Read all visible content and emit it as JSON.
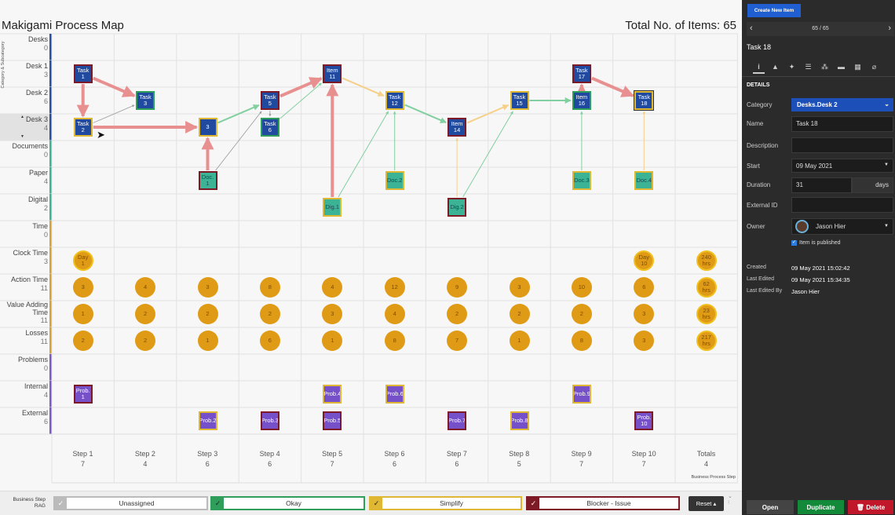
{
  "header": {
    "title": "Makigami Process Map",
    "total": "Total No. of Items: 65",
    "axis_caption": "Category & Subcategory"
  },
  "colors": {
    "desks": "#2b4fa0",
    "documents": "#3bb394",
    "time": "#d4a23a",
    "problems": "#7c5ac6",
    "node_task": "#1f4aa0",
    "node_doc": "#3bb394",
    "node_prob": "#7650c8",
    "okay": "#2e9e5a",
    "simplify": "#e0b732",
    "blocker": "#7d1a26",
    "unassigned": "#bbbbbb"
  },
  "rows": [
    {
      "label": "Desks",
      "count": "0",
      "group": "desks"
    },
    {
      "label": "Desk 1",
      "count": "3",
      "group": "desks"
    },
    {
      "label": "Desk 2",
      "count": "6",
      "group": "desks"
    },
    {
      "label": "Desk 3",
      "count": "4",
      "group": "desks",
      "selected": true
    },
    {
      "label": "Documents",
      "count": "0",
      "group": "documents"
    },
    {
      "label": "Paper",
      "count": "4",
      "group": "documents"
    },
    {
      "label": "Digital",
      "count": "2",
      "group": "documents"
    },
    {
      "label": "Time",
      "count": "0",
      "group": "time"
    },
    {
      "label": "Clock Time",
      "count": "3",
      "group": "time"
    },
    {
      "label": "Action Time",
      "count": "11",
      "group": "time"
    },
    {
      "label": "Value Adding Time",
      "count": "11",
      "group": "time"
    },
    {
      "label": "Losses",
      "count": "11",
      "group": "time"
    },
    {
      "label": "Problems",
      "count": "0",
      "group": "problems"
    },
    {
      "label": "Internal",
      "count": "4",
      "group": "problems"
    },
    {
      "label": "External",
      "count": "6",
      "group": "problems"
    }
  ],
  "steps": [
    {
      "label": "Step 1",
      "count": "7"
    },
    {
      "label": "Step 2",
      "count": "4"
    },
    {
      "label": "Step 3",
      "count": "6"
    },
    {
      "label": "Step 4",
      "count": "6"
    },
    {
      "label": "Step 5",
      "count": "7"
    },
    {
      "label": "Step 6",
      "count": "6"
    },
    {
      "label": "Step 7",
      "count": "6"
    },
    {
      "label": "Step 8",
      "count": "5"
    },
    {
      "label": "Step 9",
      "count": "7"
    },
    {
      "label": "Step 10",
      "count": "7"
    },
    {
      "label": "Totals",
      "count": "4"
    }
  ],
  "footer_caption": "Business Process Step",
  "nodes": [
    {
      "id": "t1",
      "label": "Task 1",
      "step": 1,
      "row": "Desk 1",
      "kind": "task",
      "status": "blocker"
    },
    {
      "id": "t3",
      "label": "Task 3",
      "step": 2,
      "row": "Desk 2",
      "kind": "task",
      "status": "okay"
    },
    {
      "id": "t2",
      "label": "Task 2",
      "step": 1,
      "row": "Desk 3",
      "kind": "task",
      "status": "simplify"
    },
    {
      "id": "n3",
      "label": "3",
      "step": 3,
      "row": "Desk 3",
      "kind": "task",
      "status": "simplify"
    },
    {
      "id": "d1",
      "label": "Doc. 1",
      "step": 3,
      "row": "Paper",
      "kind": "doc",
      "status": "blocker"
    },
    {
      "id": "t5",
      "label": "Task 5",
      "step": 4,
      "row": "Desk 2",
      "kind": "task",
      "status": "blocker"
    },
    {
      "id": "t6",
      "label": "Task 6",
      "step": 4,
      "row": "Desk 3",
      "kind": "task",
      "status": "okay"
    },
    {
      "id": "i11",
      "label": "Item 11",
      "step": 5,
      "row": "Desk 1",
      "kind": "task",
      "status": "blocker"
    },
    {
      "id": "g1",
      "label": "Dig.1",
      "step": 5,
      "row": "Digital",
      "kind": "doc",
      "status": "simplify"
    },
    {
      "id": "t12",
      "label": "Task 12",
      "step": 6,
      "row": "Desk 2",
      "kind": "task",
      "status": "simplify"
    },
    {
      "id": "d2",
      "label": "Doc.2",
      "step": 6,
      "row": "Paper",
      "kind": "doc",
      "status": "simplify"
    },
    {
      "id": "i14",
      "label": "Item 14",
      "step": 7,
      "row": "Desk 3",
      "kind": "task",
      "status": "blocker"
    },
    {
      "id": "g2",
      "label": "Dig.2",
      "step": 7,
      "row": "Digital",
      "kind": "doc",
      "status": "blocker"
    },
    {
      "id": "t15",
      "label": "Task 15",
      "step": 8,
      "row": "Desk 2",
      "kind": "task",
      "status": "simplify"
    },
    {
      "id": "i16",
      "label": "Item 16",
      "step": 9,
      "row": "Desk 2",
      "kind": "task",
      "status": "okay"
    },
    {
      "id": "t17",
      "label": "Task 17",
      "step": 9,
      "row": "Desk 1",
      "kind": "task",
      "status": "blocker"
    },
    {
      "id": "d3",
      "label": "Doc.3",
      "step": 9,
      "row": "Paper",
      "kind": "doc",
      "status": "simplify"
    },
    {
      "id": "t18",
      "label": "Task 18",
      "step": 10,
      "row": "Desk 2",
      "kind": "task",
      "status": "simplify",
      "selected": true
    },
    {
      "id": "d4",
      "label": "Doc.4",
      "step": 10,
      "row": "Paper",
      "kind": "doc",
      "status": "simplify"
    },
    {
      "id": "p1",
      "label": "Prob. 1",
      "step": 1,
      "row": "Internal",
      "kind": "prob",
      "status": "blocker"
    },
    {
      "id": "p4",
      "label": "Prob.4",
      "step": 5,
      "row": "Internal",
      "kind": "prob",
      "status": "simplify"
    },
    {
      "id": "p6",
      "label": "Prob.6",
      "step": 6,
      "row": "Internal",
      "kind": "prob",
      "status": "simplify"
    },
    {
      "id": "p9",
      "label": "Prob.9",
      "step": 9,
      "row": "Internal",
      "kind": "prob",
      "status": "simplify"
    },
    {
      "id": "p2",
      "label": "Prob.2",
      "step": 3,
      "row": "External",
      "kind": "prob",
      "status": "simplify"
    },
    {
      "id": "p3",
      "label": "Prob.3",
      "step": 4,
      "row": "External",
      "kind": "prob",
      "status": "blocker"
    },
    {
      "id": "p5",
      "label": "Prob.5",
      "step": 5,
      "row": "External",
      "kind": "prob",
      "status": "blocker"
    },
    {
      "id": "p7",
      "label": "Prob.7",
      "step": 7,
      "row": "External",
      "kind": "prob",
      "status": "blocker"
    },
    {
      "id": "p8",
      "label": "Prob.8",
      "step": 8,
      "row": "External",
      "kind": "prob",
      "status": "simplify"
    },
    {
      "id": "p10",
      "label": "Prob. 10",
      "step": 10,
      "row": "External",
      "kind": "prob",
      "status": "blocker"
    }
  ],
  "links": [
    {
      "from": "t1",
      "to": "t3",
      "status": "blocker"
    },
    {
      "from": "t1",
      "to": "t2",
      "status": "blocker"
    },
    {
      "from": "t2",
      "to": "t3",
      "status": "unassigned"
    },
    {
      "from": "t2",
      "to": "n3",
      "status": "blocker"
    },
    {
      "from": "d1",
      "to": "n3",
      "status": "blocker"
    },
    {
      "from": "d1",
      "to": "t5",
      "status": "unassigned"
    },
    {
      "from": "n3",
      "to": "t5",
      "status": "okay"
    },
    {
      "from": "t5",
      "to": "t6",
      "status": "unassigned"
    },
    {
      "from": "t5",
      "to": "i11",
      "status": "blocker"
    },
    {
      "from": "t6",
      "to": "i11",
      "status": "okay"
    },
    {
      "from": "g1",
      "to": "i11",
      "status": "blocker"
    },
    {
      "from": "g1",
      "to": "t12",
      "status": "okay"
    },
    {
      "from": "i11",
      "to": "t12",
      "status": "simplify"
    },
    {
      "from": "d2",
      "to": "t12",
      "status": "okay"
    },
    {
      "from": "t12",
      "to": "i14",
      "status": "okay"
    },
    {
      "from": "g2",
      "to": "i14",
      "status": "simplify"
    },
    {
      "from": "g2",
      "to": "t15",
      "status": "okay"
    },
    {
      "from": "i14",
      "to": "t15",
      "status": "simplify"
    },
    {
      "from": "t15",
      "to": "i16",
      "status": "okay"
    },
    {
      "from": "d3",
      "to": "i16",
      "status": "okay"
    },
    {
      "from": "i16",
      "to": "t17",
      "status": "blocker"
    },
    {
      "from": "t17",
      "to": "t18",
      "status": "blocker"
    },
    {
      "from": "d4",
      "to": "t18",
      "status": "simplify"
    }
  ],
  "metrics": [
    {
      "row": "Clock Time",
      "values": [
        "Day 1",
        "",
        "",
        "",
        "",
        "",
        "",
        "",
        "",
        "Day 10",
        "240 hrs"
      ]
    },
    {
      "row": "Action Time",
      "values": [
        "3",
        "4",
        "3",
        "8",
        "4",
        "12",
        "9",
        "3",
        "10",
        "6",
        "62 hrs"
      ]
    },
    {
      "row": "Value Adding Time",
      "values": [
        "1",
        "2",
        "2",
        "2",
        "3",
        "4",
        "2",
        "2",
        "2",
        "3",
        "23 hrs"
      ]
    },
    {
      "row": "Losses",
      "values": [
        "2",
        "2",
        "1",
        "6",
        "1",
        "8",
        "7",
        "1",
        "8",
        "3",
        "217 hrs"
      ]
    }
  ],
  "rag": {
    "label": "Business Step RAG",
    "buttons": [
      {
        "label": "Unassigned",
        "status": "unassigned"
      },
      {
        "label": "Okay",
        "status": "okay"
      },
      {
        "label": "Simplify",
        "status": "simplify"
      },
      {
        "label": "Blocker - Issue",
        "status": "blocker"
      }
    ],
    "reset": "Reset"
  },
  "panel": {
    "create": "Create New Item",
    "pager": "65 / 65",
    "item_title": "Task 18",
    "section": "DETAILS",
    "tabs": [
      "info-icon",
      "image-icon",
      "pointer-icon",
      "list-icon",
      "hierarchy-icon",
      "tag-icon",
      "layout-icon",
      "attachment-icon"
    ],
    "fields": {
      "category_label": "Category",
      "category": "Desks.Desk 2",
      "name_label": "Name",
      "name": "Task 18",
      "description_label": "Description",
      "description": "",
      "start_label": "Start",
      "start": "09 May 2021",
      "duration_label": "Duration",
      "duration": "31",
      "duration_unit": "days",
      "external_label": "External ID",
      "external": "",
      "owner_label": "Owner",
      "owner": "Jason Hier",
      "published": "Item is published"
    },
    "meta": {
      "created_label": "Created",
      "created": "09 May 2021 15:02:42",
      "edited_label": "Last Edited",
      "edited": "09 May 2021 15:34:35",
      "edited_by_label": "Last Edited By",
      "edited_by": "Jason Hier"
    },
    "buttons": {
      "open": "Open",
      "duplicate": "Duplicate",
      "delete": "Delete"
    }
  }
}
